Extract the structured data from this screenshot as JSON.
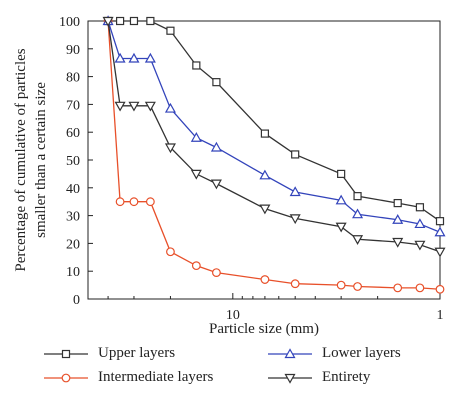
{
  "chart_data": {
    "type": "line",
    "xlabel": "Particle size (mm)",
    "ylabel": [
      "Percentage of cumulative of particles",
      "smaller than a certain size"
    ],
    "ylim": [
      0,
      100
    ],
    "y_ticks": [
      "0",
      "10",
      "20",
      "30",
      "40",
      "50",
      "60",
      "70",
      "80",
      "90",
      "100"
    ],
    "x_scale": "log-reversed",
    "xlim": [
      50,
      1
    ],
    "x_ticks": [
      "10",
      "1"
    ],
    "x": [
      40,
      35,
      30,
      25,
      20,
      15,
      12,
      7,
      5,
      3,
      2.5,
      1.6,
      1.25,
      1
    ],
    "series": [
      {
        "name": "Upper layers",
        "color": "#333333",
        "marker": "square",
        "values": [
          100,
          100,
          100,
          100,
          96.5,
          84,
          78,
          59.5,
          52,
          45,
          37,
          34.5,
          33,
          28
        ]
      },
      {
        "name": "Intermediate layers",
        "color": "#e8502a",
        "marker": "circle",
        "values": [
          100,
          35,
          35,
          35,
          17,
          12,
          9.5,
          7,
          5.5,
          5,
          4.5,
          4,
          4,
          3.5
        ]
      },
      {
        "name": "Lower layers",
        "color": "#3344bb",
        "marker": "triangle-up",
        "values": [
          100,
          86.5,
          86.5,
          86.5,
          68.5,
          58,
          54.5,
          44.5,
          38.5,
          35.5,
          30.5,
          28.5,
          27,
          24
        ]
      },
      {
        "name": "Entirety",
        "color": "#333333",
        "marker": "triangle-down",
        "values": [
          100,
          69.5,
          69.5,
          69.5,
          54.5,
          45,
          41.5,
          32.5,
          29,
          26,
          21.5,
          20.5,
          19.5,
          17
        ]
      }
    ],
    "legend_position": "bottom",
    "grid": false
  }
}
